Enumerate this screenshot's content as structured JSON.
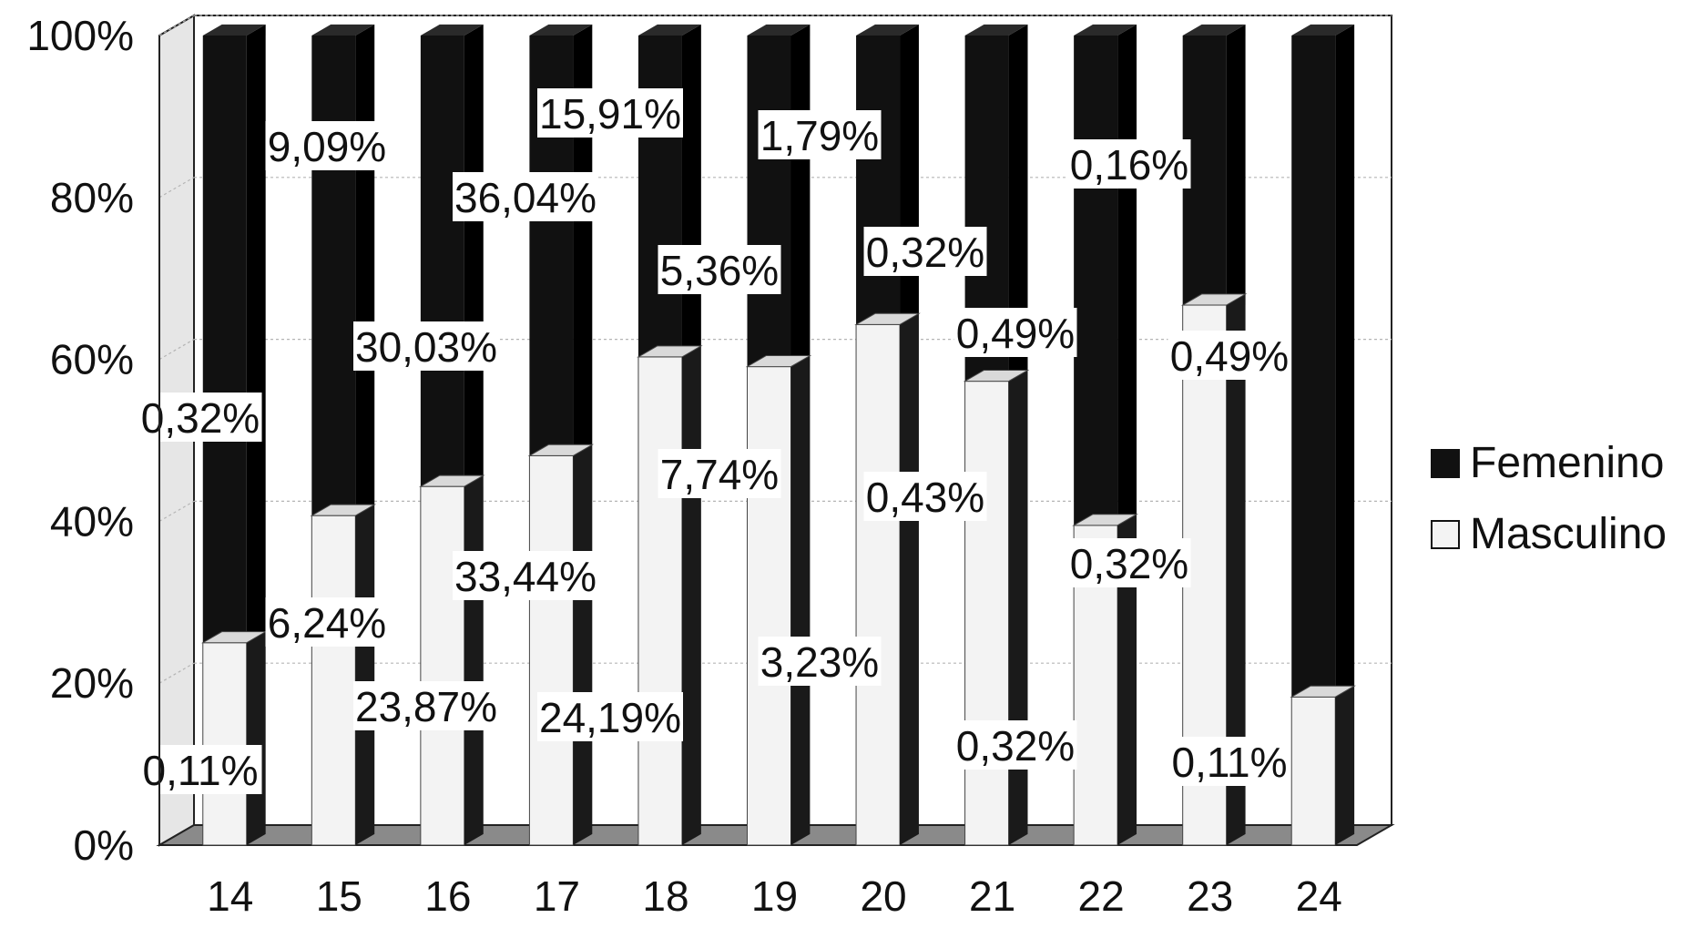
{
  "chart_data": {
    "type": "bar",
    "stacked": true,
    "normalized_percent": true,
    "three_d": true,
    "categories": [
      "14",
      "15",
      "16",
      "17",
      "18",
      "19",
      "20",
      "21",
      "22",
      "23",
      "24"
    ],
    "series": [
      {
        "name": "Femenino",
        "color": "#111111",
        "values": [
          0.32,
          9.09,
          30.03,
          36.04,
          15.91,
          5.36,
          1.79,
          0.32,
          0.49,
          0.16,
          0.49
        ],
        "labels": [
          "0,32%",
          "9,09%",
          "30,03%",
          "36,04%",
          "15,91%",
          "5,36%",
          "1,79%",
          "0,32%",
          "0,49%",
          "0,16%",
          "0,49%"
        ]
      },
      {
        "name": "Masculino",
        "color": "#f3f3f3",
        "values": [
          0.11,
          6.24,
          23.87,
          33.44,
          24.19,
          7.74,
          3.23,
          0.43,
          0.32,
          0.32,
          0.11
        ],
        "labels": [
          "0,11%",
          "6,24%",
          "23,87%",
          "33,44%",
          "24,19%",
          "7,74%",
          "3,23%",
          "0,43%",
          "0,32%",
          "0,32%",
          "0,11%"
        ]
      }
    ],
    "masculino_share_pct": [
      25,
      40.7,
      44.3,
      48.1,
      60.3,
      59.1,
      64.3,
      57.3,
      39.5,
      66.7,
      18.3
    ],
    "y_ticks": [
      "0%",
      "20%",
      "40%",
      "60%",
      "80%",
      "100%"
    ],
    "ylim": [
      0,
      100
    ],
    "grid": true,
    "legend_position": "right",
    "title": "",
    "xlabel": "",
    "ylabel": ""
  }
}
